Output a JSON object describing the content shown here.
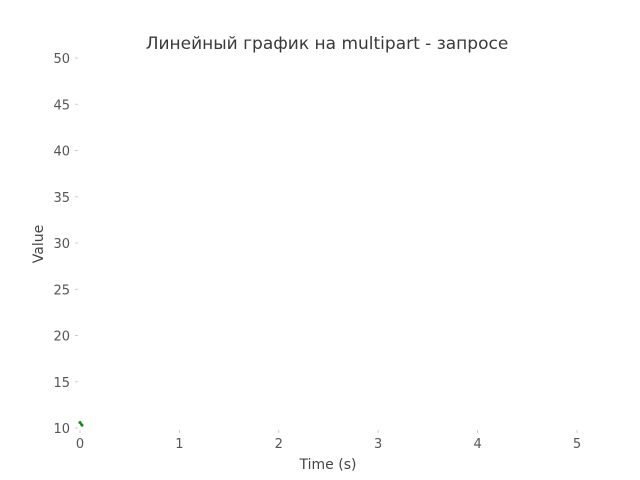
{
  "chart_data": {
    "type": "line",
    "title": "Линейный график на multipart - запросе",
    "xlabel": "Time (s)",
    "ylabel": "Value",
    "xlim": [
      0,
      5
    ],
    "ylim": [
      10,
      50
    ],
    "x_ticks": [
      0,
      1,
      2,
      3,
      4,
      5
    ],
    "y_ticks": [
      10,
      15,
      20,
      25,
      30,
      35,
      40,
      45,
      50
    ],
    "grid": false,
    "series": [
      {
        "x": [
          0,
          0.02
        ],
        "y": [
          10.6,
          10.3
        ],
        "color": "#1a8a1a"
      }
    ]
  }
}
